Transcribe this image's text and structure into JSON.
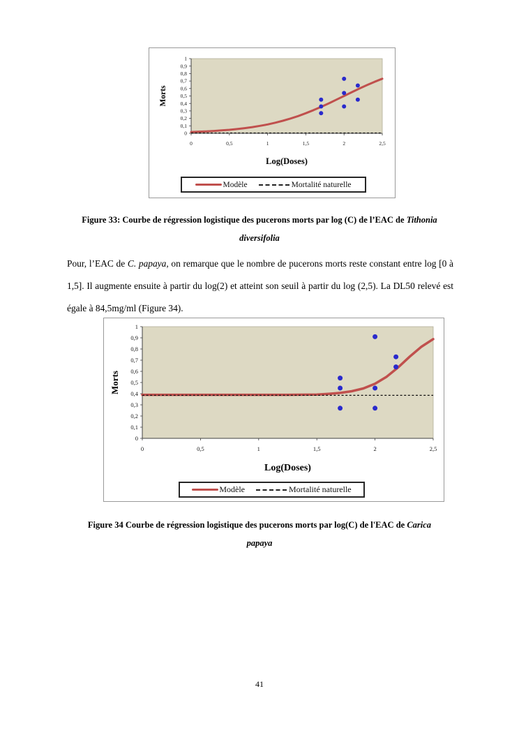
{
  "page": {
    "number": "41"
  },
  "figures": {
    "fig33": {
      "caption_line1": [
        {
          "text": "Figure 33: Courbe de régression logistique des pucerons morts par log (C) de l’EAC de ",
          "italic": false
        },
        {
          "text": "Tithonia",
          "italic": true
        }
      ],
      "caption_line2": [
        {
          "text": "diversifolia",
          "italic": true
        }
      ]
    },
    "fig34": {
      "caption_line1": [
        {
          "text": "Figure 34 Courbe de régression logistique des pucerons morts par log(C) de l'EAC de ",
          "italic": false
        },
        {
          "text": "Carica",
          "italic": true
        }
      ],
      "caption_line2": [
        {
          "text": "papaya",
          "italic": true
        }
      ]
    }
  },
  "paragraph_segments": [
    {
      "text": "Pour, l’EAC de ",
      "italic": false
    },
    {
      "text": "C. papaya",
      "italic": true
    },
    {
      "text": ", on remarque que le nombre de pucerons morts reste constant entre log [0 à 1,5]. Il augmente ensuite à partir du log(2) et atteint son seuil à partir du log (2,5). La DL50 relevé est égale à 84,5mg/ml (Figure 34).",
      "italic": false
    }
  ],
  "chart_data": [
    {
      "type": "line",
      "title": "",
      "xlabel": "Log(Doses)",
      "ylabel": "Morts",
      "xlim": [
        0,
        2.5
      ],
      "ylim": [
        0,
        1
      ],
      "grid": false,
      "legend_position": "bottom",
      "plot_bg": "#ddd9c3",
      "xticks": {
        "values": [
          0,
          0.5,
          1,
          1.5,
          2,
          2.5
        ],
        "labels": [
          "0",
          "0,5",
          "1",
          "1,5",
          "2",
          "2,5"
        ]
      },
      "yticks": {
        "values": [
          0,
          0.1,
          0.2,
          0.3,
          0.4,
          0.5,
          0.6,
          0.7,
          0.8,
          0.9,
          1
        ],
        "labels": [
          "0",
          "0,1",
          "0,2",
          "0,3",
          "0,4",
          "0,5",
          "0,6",
          "0,7",
          "0,8",
          "0,9",
          "1"
        ]
      },
      "series": [
        {
          "name": "Modèle",
          "kind": "line",
          "color": "#c0504d",
          "points": [
            [
              0,
              0.018
            ],
            [
              0.1,
              0.022
            ],
            [
              0.2,
              0.026
            ],
            [
              0.3,
              0.032
            ],
            [
              0.4,
              0.039
            ],
            [
              0.5,
              0.047
            ],
            [
              0.6,
              0.057
            ],
            [
              0.7,
              0.069
            ],
            [
              0.8,
              0.083
            ],
            [
              0.9,
              0.1
            ],
            [
              1,
              0.119
            ],
            [
              1.1,
              0.142
            ],
            [
              1.2,
              0.168
            ],
            [
              1.3,
              0.198
            ],
            [
              1.4,
              0.231
            ],
            [
              1.5,
              0.269
            ],
            [
              1.6,
              0.31
            ],
            [
              1.7,
              0.354
            ],
            [
              1.8,
              0.401
            ],
            [
              1.9,
              0.45
            ],
            [
              2,
              0.5
            ],
            [
              2.1,
              0.55
            ],
            [
              2.2,
              0.599
            ],
            [
              2.3,
              0.646
            ],
            [
              2.4,
              0.69
            ],
            [
              2.5,
              0.731
            ]
          ]
        },
        {
          "name": "Mortalité naturelle",
          "kind": "dashed",
          "color": "#111111",
          "points": [
            [
              0,
              0.005
            ],
            [
              2.5,
              0.005
            ]
          ]
        },
        {
          "kind": "scatter",
          "color": "#2a2acc",
          "points": [
            [
              1.7,
              0.27
            ],
            [
              1.7,
              0.36
            ],
            [
              1.7,
              0.45
            ],
            [
              2,
              0.36
            ],
            [
              2,
              0.54
            ],
            [
              2,
              0.73
            ],
            [
              2.18,
              0.45
            ],
            [
              2.18,
              0.64
            ]
          ]
        }
      ],
      "legend": [
        {
          "label": "Modèle",
          "swatch": "line",
          "color": "#c0504d"
        },
        {
          "label": "Mortalité naturelle",
          "swatch": "dashed",
          "color": "#111111"
        }
      ]
    },
    {
      "type": "line",
      "title": "",
      "xlabel": "Log(Doses)",
      "ylabel": "Morts",
      "xlim": [
        0,
        2.5
      ],
      "ylim": [
        0,
        1
      ],
      "grid": false,
      "legend_position": "bottom",
      "plot_bg": "#ddd9c3",
      "xticks": {
        "values": [
          0,
          0.5,
          1,
          1.5,
          2,
          2.5
        ],
        "labels": [
          "0",
          "0,5",
          "1",
          "1,5",
          "2",
          "2,5"
        ]
      },
      "yticks": {
        "values": [
          0,
          0.1,
          0.2,
          0.3,
          0.4,
          0.5,
          0.6,
          0.7,
          0.8,
          0.9,
          1
        ],
        "labels": [
          "0",
          "0,1",
          "0,2",
          "0,3",
          "0,4",
          "0,5",
          "0,6",
          "0,7",
          "0,8",
          "0,9",
          "1"
        ]
      },
      "series": [
        {
          "name": "Modèle",
          "kind": "line",
          "color": "#c0504d",
          "points": [
            [
              0,
              0.39
            ],
            [
              0.25,
              0.39
            ],
            [
              0.5,
              0.39
            ],
            [
              0.75,
              0.39
            ],
            [
              1,
              0.39
            ],
            [
              1.25,
              0.39
            ],
            [
              1.4,
              0.391
            ],
            [
              1.5,
              0.392
            ],
            [
              1.6,
              0.399
            ],
            [
              1.7,
              0.407
            ],
            [
              1.8,
              0.422
            ],
            [
              1.9,
              0.447
            ],
            [
              2,
              0.489
            ],
            [
              2.1,
              0.552
            ],
            [
              2.2,
              0.637
            ],
            [
              2.3,
              0.733
            ],
            [
              2.4,
              0.821
            ],
            [
              2.5,
              0.889
            ]
          ]
        },
        {
          "name": "Mortalité naturelle",
          "kind": "dashed",
          "color": "#111111",
          "points": [
            [
              0,
              0.385
            ],
            [
              2.5,
              0.385
            ]
          ]
        },
        {
          "kind": "scatter",
          "color": "#2a2acc",
          "points": [
            [
              1.7,
              0.27
            ],
            [
              1.7,
              0.45
            ],
            [
              1.7,
              0.54
            ],
            [
              2,
              0.27
            ],
            [
              2,
              0.45
            ],
            [
              2,
              0.91
            ],
            [
              2.18,
              0.64
            ],
            [
              2.18,
              0.73
            ]
          ]
        }
      ],
      "legend": [
        {
          "label": "Modèle",
          "swatch": "line",
          "color": "#c0504d"
        },
        {
          "label": "Mortalité naturelle",
          "swatch": "dashed",
          "color": "#111111"
        }
      ]
    }
  ]
}
